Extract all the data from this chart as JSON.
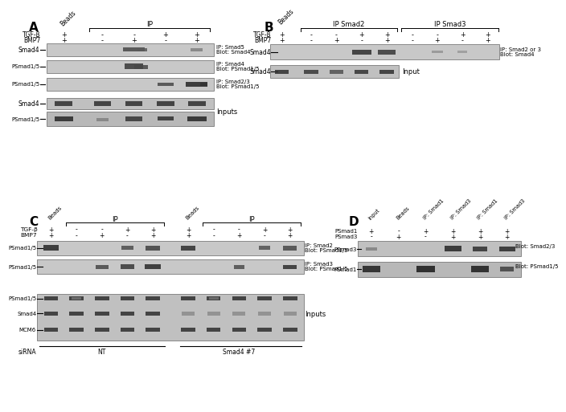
{
  "bg_color": "#ffffff",
  "panel_A": {
    "label": "A",
    "cols": [
      1.5,
      3.1,
      4.4,
      5.7,
      7.0
    ],
    "tgfb": [
      "+",
      "-",
      "-",
      "+",
      "+"
    ],
    "bmp7": [
      "+",
      "-",
      "+",
      "-",
      "+"
    ],
    "blot_labels": [
      "Smad4",
      "PSmad1/5",
      "PSmad1/5"
    ],
    "annots": [
      "IP: Smad5\nBlot: Smad4",
      "IP: Smad4\nBlot: PSmad1/5",
      "IP: Smad2/3\nBlot: PSmad1/5"
    ],
    "input_labels": [
      "Smad4",
      "PSmad1/5"
    ],
    "inputs_text": "Inputs"
  },
  "panel_B": {
    "label": "B",
    "cols": [
      1.0,
      2.5,
      3.8,
      5.1,
      6.4,
      7.7,
      9.0,
      10.3,
      11.6
    ],
    "tgfb": [
      "+",
      "-",
      "-",
      "+",
      "+",
      "-",
      "-",
      "+",
      "+"
    ],
    "bmp7": [
      "+",
      "-",
      "+",
      "-",
      "+",
      "-",
      "+",
      "-",
      "+"
    ],
    "ip_smad2_label": "IP Smad2",
    "ip_smad3_label": "IP Smad3",
    "beads_label": "Beads",
    "blot1_annot": "IP: Smad2 or 3\nBlot: Smad4",
    "input_text": "Input"
  },
  "panel_C": {
    "label": "C",
    "cols": [
      1.2,
      2.5,
      3.8,
      5.1,
      6.4,
      8.0,
      9.3,
      10.6,
      11.9,
      13.2
    ],
    "tgfb": [
      "+",
      "-",
      "-",
      "+",
      "+",
      "+",
      "-",
      "-",
      "+",
      "+"
    ],
    "bmp7": [
      "+",
      "-",
      "+",
      "-",
      "+",
      "+",
      "-",
      "+",
      "-",
      "+"
    ],
    "blot1_annot": "IP: Smad2\nBlot: PSmad1/5",
    "blot2_annot": "IP: Smad3\nBlot: PSmad1/5",
    "input_labels": [
      "PSmad1/5",
      "Smad4",
      "MCM6"
    ],
    "inputs_text": "Inputs",
    "sirna_text": "siRNA",
    "nt_text": "NT",
    "smad4hash_text": "Smad4 #7"
  },
  "panel_D": {
    "label": "D",
    "cols": [
      1.2,
      2.5,
      3.8,
      5.1,
      6.4,
      7.7
    ],
    "col_labels": [
      "Input",
      "Beads",
      "IP: Smad1",
      "IP: Smad3",
      "IP: Smad1",
      "IP: Smad3"
    ],
    "psmad1": [
      "+",
      "-",
      "+",
      "+",
      "+",
      "+"
    ],
    "psmad3": [
      "-",
      "+",
      "-",
      "+",
      "+",
      "+"
    ],
    "blot1_label": "PSmad3",
    "blot2_label": "PSmad1",
    "blot1_annot": "Blot: Smad2/3",
    "blot2_annot": "Blot: PSmad1/5"
  }
}
